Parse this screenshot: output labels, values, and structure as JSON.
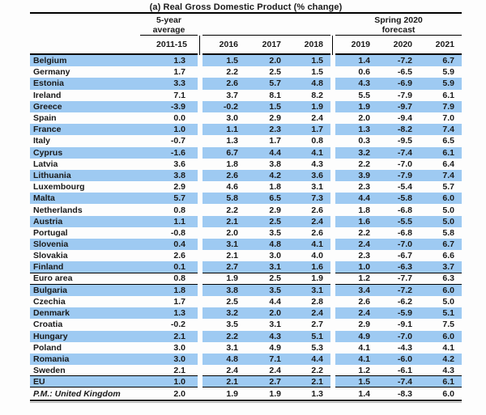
{
  "title": "(a) Real Gross Domestic Product (% change)",
  "header": {
    "group1_line1": "5-year",
    "group1_line2": "average",
    "group3_line1": "Spring 2020",
    "group3_line2": "forecast",
    "years": [
      "2011-15",
      "2016",
      "2017",
      "2018",
      "2019",
      "2020",
      "2021"
    ]
  },
  "colors": {
    "row_highlight": "#9ECAF2",
    "line": "#000000",
    "text": "#1a1a1a",
    "shadow": "#a8a8a8"
  },
  "table": {
    "rows": [
      {
        "label": "Belgium",
        "values": [
          "1.3",
          "1.5",
          "2.0",
          "1.5",
          "1.4",
          "-7.2",
          "6.7"
        ],
        "highlight": true,
        "separator_below": false,
        "italic": false
      },
      {
        "label": "Germany",
        "values": [
          "1.7",
          "2.2",
          "2.5",
          "1.5",
          "0.6",
          "-6.5",
          "5.9"
        ],
        "highlight": false,
        "separator_below": false,
        "italic": false
      },
      {
        "label": "Estonia",
        "values": [
          "3.3",
          "2.6",
          "5.7",
          "4.8",
          "4.3",
          "-6.9",
          "5.9"
        ],
        "highlight": true,
        "separator_below": false,
        "italic": false
      },
      {
        "label": "Ireland",
        "values": [
          "7.1",
          "3.7",
          "8.1",
          "8.2",
          "5.5",
          "-7.9",
          "6.1"
        ],
        "highlight": false,
        "separator_below": false,
        "italic": false
      },
      {
        "label": "Greece",
        "values": [
          "-3.9",
          "-0.2",
          "1.5",
          "1.9",
          "1.9",
          "-9.7",
          "7.9"
        ],
        "highlight": true,
        "separator_below": false,
        "italic": false
      },
      {
        "label": "Spain",
        "values": [
          "0.0",
          "3.0",
          "2.9",
          "2.4",
          "2.0",
          "-9.4",
          "7.0"
        ],
        "highlight": false,
        "separator_below": false,
        "italic": false
      },
      {
        "label": "France",
        "values": [
          "1.0",
          "1.1",
          "2.3",
          "1.7",
          "1.3",
          "-8.2",
          "7.4"
        ],
        "highlight": true,
        "separator_below": false,
        "italic": false
      },
      {
        "label": "Italy",
        "values": [
          "-0.7",
          "1.3",
          "1.7",
          "0.8",
          "0.3",
          "-9.5",
          "6.5"
        ],
        "highlight": false,
        "separator_below": false,
        "italic": false
      },
      {
        "label": "Cyprus",
        "values": [
          "-1.6",
          "6.7",
          "4.4",
          "4.1",
          "3.2",
          "-7.4",
          "6.1"
        ],
        "highlight": true,
        "separator_below": false,
        "italic": false
      },
      {
        "label": "Latvia",
        "values": [
          "3.6",
          "1.8",
          "3.8",
          "4.3",
          "2.2",
          "-7.0",
          "6.4"
        ],
        "highlight": false,
        "separator_below": false,
        "italic": false
      },
      {
        "label": "Lithuania",
        "values": [
          "3.8",
          "2.6",
          "4.2",
          "3.6",
          "3.9",
          "-7.9",
          "7.4"
        ],
        "highlight": true,
        "separator_below": false,
        "italic": false
      },
      {
        "label": "Luxembourg",
        "values": [
          "2.9",
          "4.6",
          "1.8",
          "3.1",
          "2.3",
          "-5.4",
          "5.7"
        ],
        "highlight": false,
        "separator_below": false,
        "italic": false
      },
      {
        "label": "Malta",
        "values": [
          "5.7",
          "5.8",
          "6.5",
          "7.3",
          "4.4",
          "-5.8",
          "6.0"
        ],
        "highlight": true,
        "separator_below": false,
        "italic": false
      },
      {
        "label": "Netherlands",
        "values": [
          "0.8",
          "2.2",
          "2.9",
          "2.6",
          "1.8",
          "-6.8",
          "5.0"
        ],
        "highlight": false,
        "separator_below": false,
        "italic": false
      },
      {
        "label": "Austria",
        "values": [
          "1.1",
          "2.1",
          "2.5",
          "2.4",
          "1.6",
          "-5.5",
          "5.0"
        ],
        "highlight": true,
        "separator_below": false,
        "italic": false
      },
      {
        "label": "Portugal",
        "values": [
          "-0.8",
          "2.0",
          "3.5",
          "2.6",
          "2.2",
          "-6.8",
          "5.8"
        ],
        "highlight": false,
        "separator_below": false,
        "italic": false
      },
      {
        "label": "Slovenia",
        "values": [
          "0.4",
          "3.1",
          "4.8",
          "4.1",
          "2.4",
          "-7.0",
          "6.7"
        ],
        "highlight": true,
        "separator_below": false,
        "italic": false
      },
      {
        "label": "Slovakia",
        "values": [
          "2.6",
          "2.1",
          "3.0",
          "4.0",
          "2.3",
          "-6.7",
          "6.6"
        ],
        "highlight": false,
        "separator_below": false,
        "italic": false
      },
      {
        "label": "Finland",
        "values": [
          "0.1",
          "2.7",
          "3.1",
          "1.6",
          "1.0",
          "-6.3",
          "3.7"
        ],
        "highlight": true,
        "separator_below": true,
        "italic": false
      },
      {
        "label": "Euro area",
        "values": [
          "0.8",
          "1.9",
          "2.5",
          "1.9",
          "1.2",
          "-7.7",
          "6.3"
        ],
        "highlight": false,
        "separator_below": true,
        "italic": false
      },
      {
        "label": "Bulgaria",
        "values": [
          "1.8",
          "3.8",
          "3.5",
          "3.1",
          "3.4",
          "-7.2",
          "6.0"
        ],
        "highlight": true,
        "separator_below": false,
        "italic": false
      },
      {
        "label": "Czechia",
        "values": [
          "1.7",
          "2.5",
          "4.4",
          "2.8",
          "2.6",
          "-6.2",
          "5.0"
        ],
        "highlight": false,
        "separator_below": false,
        "italic": false
      },
      {
        "label": "Denmark",
        "values": [
          "1.3",
          "3.2",
          "2.0",
          "2.4",
          "2.4",
          "-5.9",
          "5.1"
        ],
        "highlight": true,
        "separator_below": false,
        "italic": false
      },
      {
        "label": "Croatia",
        "values": [
          "-0.2",
          "3.5",
          "3.1",
          "2.7",
          "2.9",
          "-9.1",
          "7.5"
        ],
        "highlight": false,
        "separator_below": false,
        "italic": false
      },
      {
        "label": "Hungary",
        "values": [
          "2.1",
          "2.2",
          "4.3",
          "5.1",
          "4.9",
          "-7.0",
          "6.0"
        ],
        "highlight": true,
        "separator_below": false,
        "italic": false
      },
      {
        "label": "Poland",
        "values": [
          "3.0",
          "3.1",
          "4.9",
          "5.3",
          "4.1",
          "-4.3",
          "4.1"
        ],
        "highlight": false,
        "separator_below": false,
        "italic": false
      },
      {
        "label": "Romania",
        "values": [
          "3.0",
          "4.8",
          "7.1",
          "4.4",
          "4.1",
          "-6.0",
          "4.2"
        ],
        "highlight": true,
        "separator_below": false,
        "italic": false
      },
      {
        "label": "Sweden",
        "values": [
          "2.1",
          "2.4",
          "2.4",
          "2.2",
          "1.2",
          "-6.1",
          "4.3"
        ],
        "highlight": false,
        "separator_below": true,
        "italic": false
      },
      {
        "label": "EU",
        "values": [
          "1.0",
          "2.1",
          "2.7",
          "2.1",
          "1.5",
          "-7.4",
          "6.1"
        ],
        "highlight": true,
        "separator_below": true,
        "italic": false
      },
      {
        "label": "P.M.: United Kingdom",
        "values": [
          "2.0",
          "1.9",
          "1.9",
          "1.3",
          "1.4",
          "-8.3",
          "6.0"
        ],
        "highlight": false,
        "separator_below": false,
        "italic": true
      }
    ]
  }
}
